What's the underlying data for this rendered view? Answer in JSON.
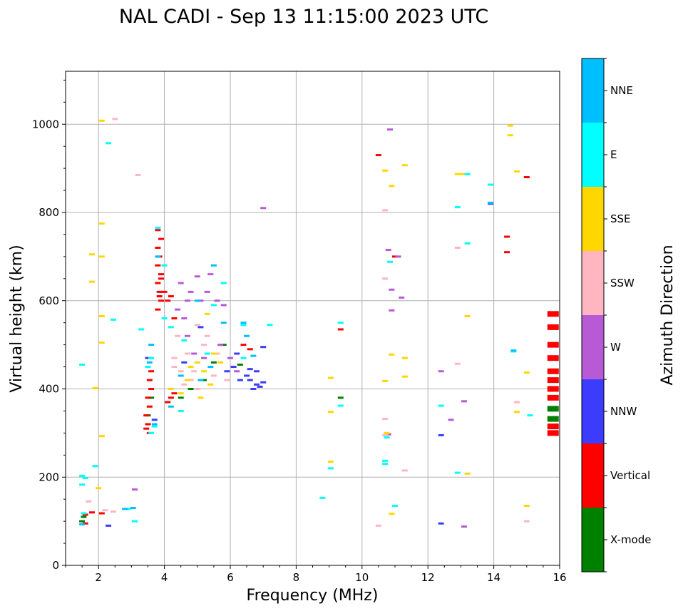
{
  "chart_data": {
    "type": "scatter",
    "title": "NAL CADI - Sep 13 11:15:00 2023 UTC",
    "xlabel": "Frequency (MHz)",
    "ylabel": "Virtual height (km)",
    "xlim": [
      1,
      16
    ],
    "ylim": [
      0,
      1120
    ],
    "xticks": [
      2,
      4,
      6,
      8,
      10,
      12,
      14,
      16
    ],
    "yticks": [
      0,
      200,
      400,
      600,
      800,
      1000
    ],
    "grid": true,
    "colorbar": {
      "title": "Azimuth Direction",
      "categories": [
        "X-mode",
        "Vertical",
        "NNW",
        "W",
        "SSW",
        "SSE",
        "E",
        "NNE"
      ],
      "colors": [
        "#008000",
        "#ff0000",
        "#3c3cff",
        "#b85ad6",
        "#ffb6c1",
        "#ffd700",
        "#00ffff",
        "#00bfff"
      ]
    },
    "series": [
      {
        "name": "X-mode",
        "points": [
          [
            9.35,
            380
          ],
          [
            15.8,
            355
          ],
          [
            15.8,
            332
          ],
          [
            1.5,
            100
          ],
          [
            1.55,
            110
          ],
          [
            3.5,
            340
          ],
          [
            3.6,
            380
          ],
          [
            4.5,
            380
          ],
          [
            5.2,
            420
          ],
          [
            5.5,
            460
          ],
          [
            4.8,
            400
          ],
          [
            6.3,
            455
          ],
          [
            5.8,
            500
          ]
        ]
      },
      {
        "name": "Vertical",
        "points": [
          [
            15.8,
            570
          ],
          [
            15.8,
            540
          ],
          [
            15.8,
            500
          ],
          [
            15.8,
            470
          ],
          [
            15.8,
            440
          ],
          [
            15.8,
            420
          ],
          [
            15.8,
            400
          ],
          [
            15.8,
            380
          ],
          [
            15.8,
            315
          ],
          [
            15.8,
            300
          ],
          [
            3.8,
            760
          ],
          [
            3.9,
            740
          ],
          [
            3.8,
            720
          ],
          [
            3.85,
            700
          ],
          [
            3.8,
            680
          ],
          [
            3.9,
            660
          ],
          [
            3.8,
            640
          ],
          [
            3.85,
            620
          ],
          [
            3.9,
            600
          ],
          [
            3.8,
            580
          ],
          [
            3.85,
            610
          ],
          [
            4.0,
            620
          ],
          [
            4.1,
            600
          ],
          [
            4.2,
            610
          ],
          [
            3.6,
            440
          ],
          [
            3.55,
            420
          ],
          [
            3.6,
            400
          ],
          [
            3.5,
            380
          ],
          [
            3.55,
            360
          ],
          [
            3.45,
            340
          ],
          [
            3.5,
            320
          ],
          [
            3.55,
            300
          ],
          [
            3.45,
            310
          ],
          [
            4.1,
            370
          ],
          [
            4.2,
            380
          ],
          [
            4.3,
            390
          ],
          [
            6.4,
            500
          ],
          [
            6.6,
            490
          ],
          [
            1.6,
            115
          ],
          [
            1.8,
            120
          ],
          [
            2.1,
            118
          ],
          [
            9.35,
            535
          ],
          [
            10.5,
            930
          ],
          [
            11.0,
            700
          ],
          [
            14.4,
            745
          ],
          [
            14.4,
            710
          ],
          [
            15.0,
            880
          ],
          [
            1.6,
            95
          ],
          [
            3.9,
            650
          ],
          [
            4.3,
            560
          ]
        ]
      },
      {
        "name": "NNW",
        "points": [
          [
            6.8,
            410
          ],
          [
            6.6,
            420
          ],
          [
            6.7,
            400
          ],
          [
            6.9,
            405
          ],
          [
            6.5,
            430
          ],
          [
            7.0,
            415
          ],
          [
            6.6,
            445
          ],
          [
            6.8,
            440
          ],
          [
            7.0,
            495
          ],
          [
            6.3,
            420
          ],
          [
            6.1,
            450
          ],
          [
            5.9,
            440
          ],
          [
            12.4,
            295
          ],
          [
            12.4,
            95
          ],
          [
            13.9,
            820
          ],
          [
            3.5,
            470
          ],
          [
            3.7,
            330
          ],
          [
            2.3,
            90
          ],
          [
            4.6,
            460
          ],
          [
            5.1,
            540
          ],
          [
            6.2,
            480
          ]
        ]
      },
      {
        "name": "W",
        "points": [
          [
            10.85,
            988
          ],
          [
            11.1,
            700
          ],
          [
            10.9,
            625
          ],
          [
            11.2,
            607
          ],
          [
            10.8,
            715
          ],
          [
            10.9,
            578
          ],
          [
            12.4,
            440
          ],
          [
            13.1,
            372
          ],
          [
            12.7,
            330
          ],
          [
            13.1,
            88
          ],
          [
            10.8,
            297
          ],
          [
            3.1,
            172
          ],
          [
            4.4,
            580
          ],
          [
            4.6,
            560
          ],
          [
            4.8,
            620
          ],
          [
            5.1,
            600
          ],
          [
            5.3,
            620
          ],
          [
            5.6,
            600
          ],
          [
            5.0,
            655
          ],
          [
            4.7,
            600
          ],
          [
            4.5,
            640
          ],
          [
            5.4,
            660
          ],
          [
            5.7,
            500
          ],
          [
            6.0,
            470
          ],
          [
            6.2,
            440
          ],
          [
            4.9,
            480
          ],
          [
            7.0,
            810
          ],
          [
            5.8,
            590
          ],
          [
            5.2,
            470
          ],
          [
            4.7,
            520
          ]
        ]
      },
      {
        "name": "SSW",
        "points": [
          [
            10.7,
            650
          ],
          [
            10.7,
            332
          ],
          [
            10.7,
            295
          ],
          [
            10.7,
            805
          ],
          [
            12.9,
            720
          ],
          [
            12.9,
            457
          ],
          [
            11.3,
            215
          ],
          [
            10.5,
            90
          ],
          [
            14.7,
            370
          ],
          [
            15.0,
            100
          ],
          [
            4.3,
            470
          ],
          [
            4.5,
            440
          ],
          [
            4.8,
            420
          ],
          [
            5.0,
            400
          ],
          [
            4.6,
            410
          ],
          [
            4.3,
            450
          ],
          [
            5.5,
            430
          ],
          [
            5.9,
            420
          ],
          [
            4.4,
            520
          ],
          [
            4.7,
            480
          ],
          [
            5.3,
            520
          ],
          [
            5.6,
            480
          ],
          [
            3.2,
            885
          ],
          [
            2.5,
            1012
          ],
          [
            1.7,
            145
          ],
          [
            2.2,
            125
          ],
          [
            2.45,
            122
          ],
          [
            5.0,
            545
          ],
          [
            5.2,
            500
          ],
          [
            4.9,
            440
          ]
        ]
      },
      {
        "name": "SSE",
        "points": [
          [
            10.9,
            860
          ],
          [
            10.7,
            895
          ],
          [
            11.3,
            907
          ],
          [
            12.9,
            887
          ],
          [
            13.05,
            887
          ],
          [
            14.5,
            975
          ],
          [
            14.5,
            997
          ],
          [
            14.7,
            893
          ],
          [
            10.7,
            418
          ],
          [
            10.9,
            478
          ],
          [
            11.3,
            470
          ],
          [
            11.3,
            428
          ],
          [
            9.05,
            425
          ],
          [
            9.05,
            348
          ],
          [
            9.05,
            235
          ],
          [
            10.75,
            300
          ],
          [
            10.9,
            117
          ],
          [
            13.2,
            565
          ],
          [
            13.2,
            208
          ],
          [
            14.7,
            348
          ],
          [
            15.0,
            437
          ],
          [
            15.0,
            135
          ],
          [
            2.1,
            1008
          ],
          [
            2.1,
            775
          ],
          [
            1.8,
            705
          ],
          [
            2.1,
            700
          ],
          [
            1.8,
            643
          ],
          [
            2.1,
            565
          ],
          [
            2.1,
            505
          ],
          [
            2.1,
            293
          ],
          [
            1.9,
            402
          ],
          [
            2.0,
            175
          ],
          [
            4.2,
            400
          ],
          [
            4.5,
            390
          ],
          [
            4.7,
            420
          ],
          [
            5.0,
            460
          ],
          [
            5.2,
            440
          ],
          [
            5.4,
            410
          ],
          [
            5.5,
            480
          ],
          [
            5.1,
            380
          ],
          [
            4.8,
            450
          ],
          [
            5.7,
            460
          ],
          [
            5.3,
            570
          ]
        ]
      },
      {
        "name": "E",
        "points": [
          [
            13.2,
            887
          ],
          [
            13.9,
            863
          ],
          [
            12.9,
            812
          ],
          [
            13.2,
            730
          ],
          [
            10.85,
            688
          ],
          [
            9.35,
            362
          ],
          [
            9.35,
            550
          ],
          [
            8.8,
            153
          ],
          [
            9.05,
            220
          ],
          [
            10.7,
            237
          ],
          [
            10.7,
            230
          ],
          [
            10.75,
            290
          ],
          [
            11.0,
            135
          ],
          [
            12.4,
            362
          ],
          [
            12.9,
            210
          ],
          [
            14.6,
            485
          ],
          [
            15.1,
            340
          ],
          [
            2.3,
            957
          ],
          [
            2.45,
            557
          ],
          [
            1.5,
            455
          ],
          [
            1.9,
            225
          ],
          [
            1.5,
            203
          ],
          [
            1.6,
            198
          ],
          [
            1.5,
            183
          ],
          [
            3.1,
            100
          ],
          [
            2.9,
            128
          ],
          [
            1.55,
            118
          ],
          [
            3.3,
            535
          ],
          [
            3.5,
            450
          ],
          [
            3.6,
            470
          ],
          [
            4.2,
            540
          ],
          [
            4.0,
            560
          ],
          [
            4.6,
            510
          ],
          [
            5.3,
            480
          ],
          [
            7.2,
            545
          ],
          [
            6.4,
            545
          ],
          [
            6.4,
            470
          ],
          [
            5.5,
            590
          ],
          [
            5.8,
            640
          ],
          [
            4.0,
            680
          ],
          [
            3.8,
            765
          ],
          [
            3.6,
            300
          ],
          [
            3.7,
            315
          ],
          [
            4.5,
            350
          ]
        ]
      },
      {
        "name": "NNE",
        "points": [
          [
            13.9,
            822
          ],
          [
            14.6,
            487
          ],
          [
            3.7,
            320
          ],
          [
            3.55,
            460
          ],
          [
            3.6,
            500
          ],
          [
            4.2,
            360
          ],
          [
            5.0,
            600
          ],
          [
            5.5,
            680
          ],
          [
            5.8,
            550
          ],
          [
            6.4,
            550
          ],
          [
            6.5,
            520
          ],
          [
            6.7,
            475
          ],
          [
            3.8,
            700
          ],
          [
            4.5,
            430
          ],
          [
            5.1,
            420
          ],
          [
            5.4,
            450
          ],
          [
            1.5,
            93
          ],
          [
            2.8,
            128
          ],
          [
            3.05,
            130
          ]
        ]
      }
    ]
  }
}
